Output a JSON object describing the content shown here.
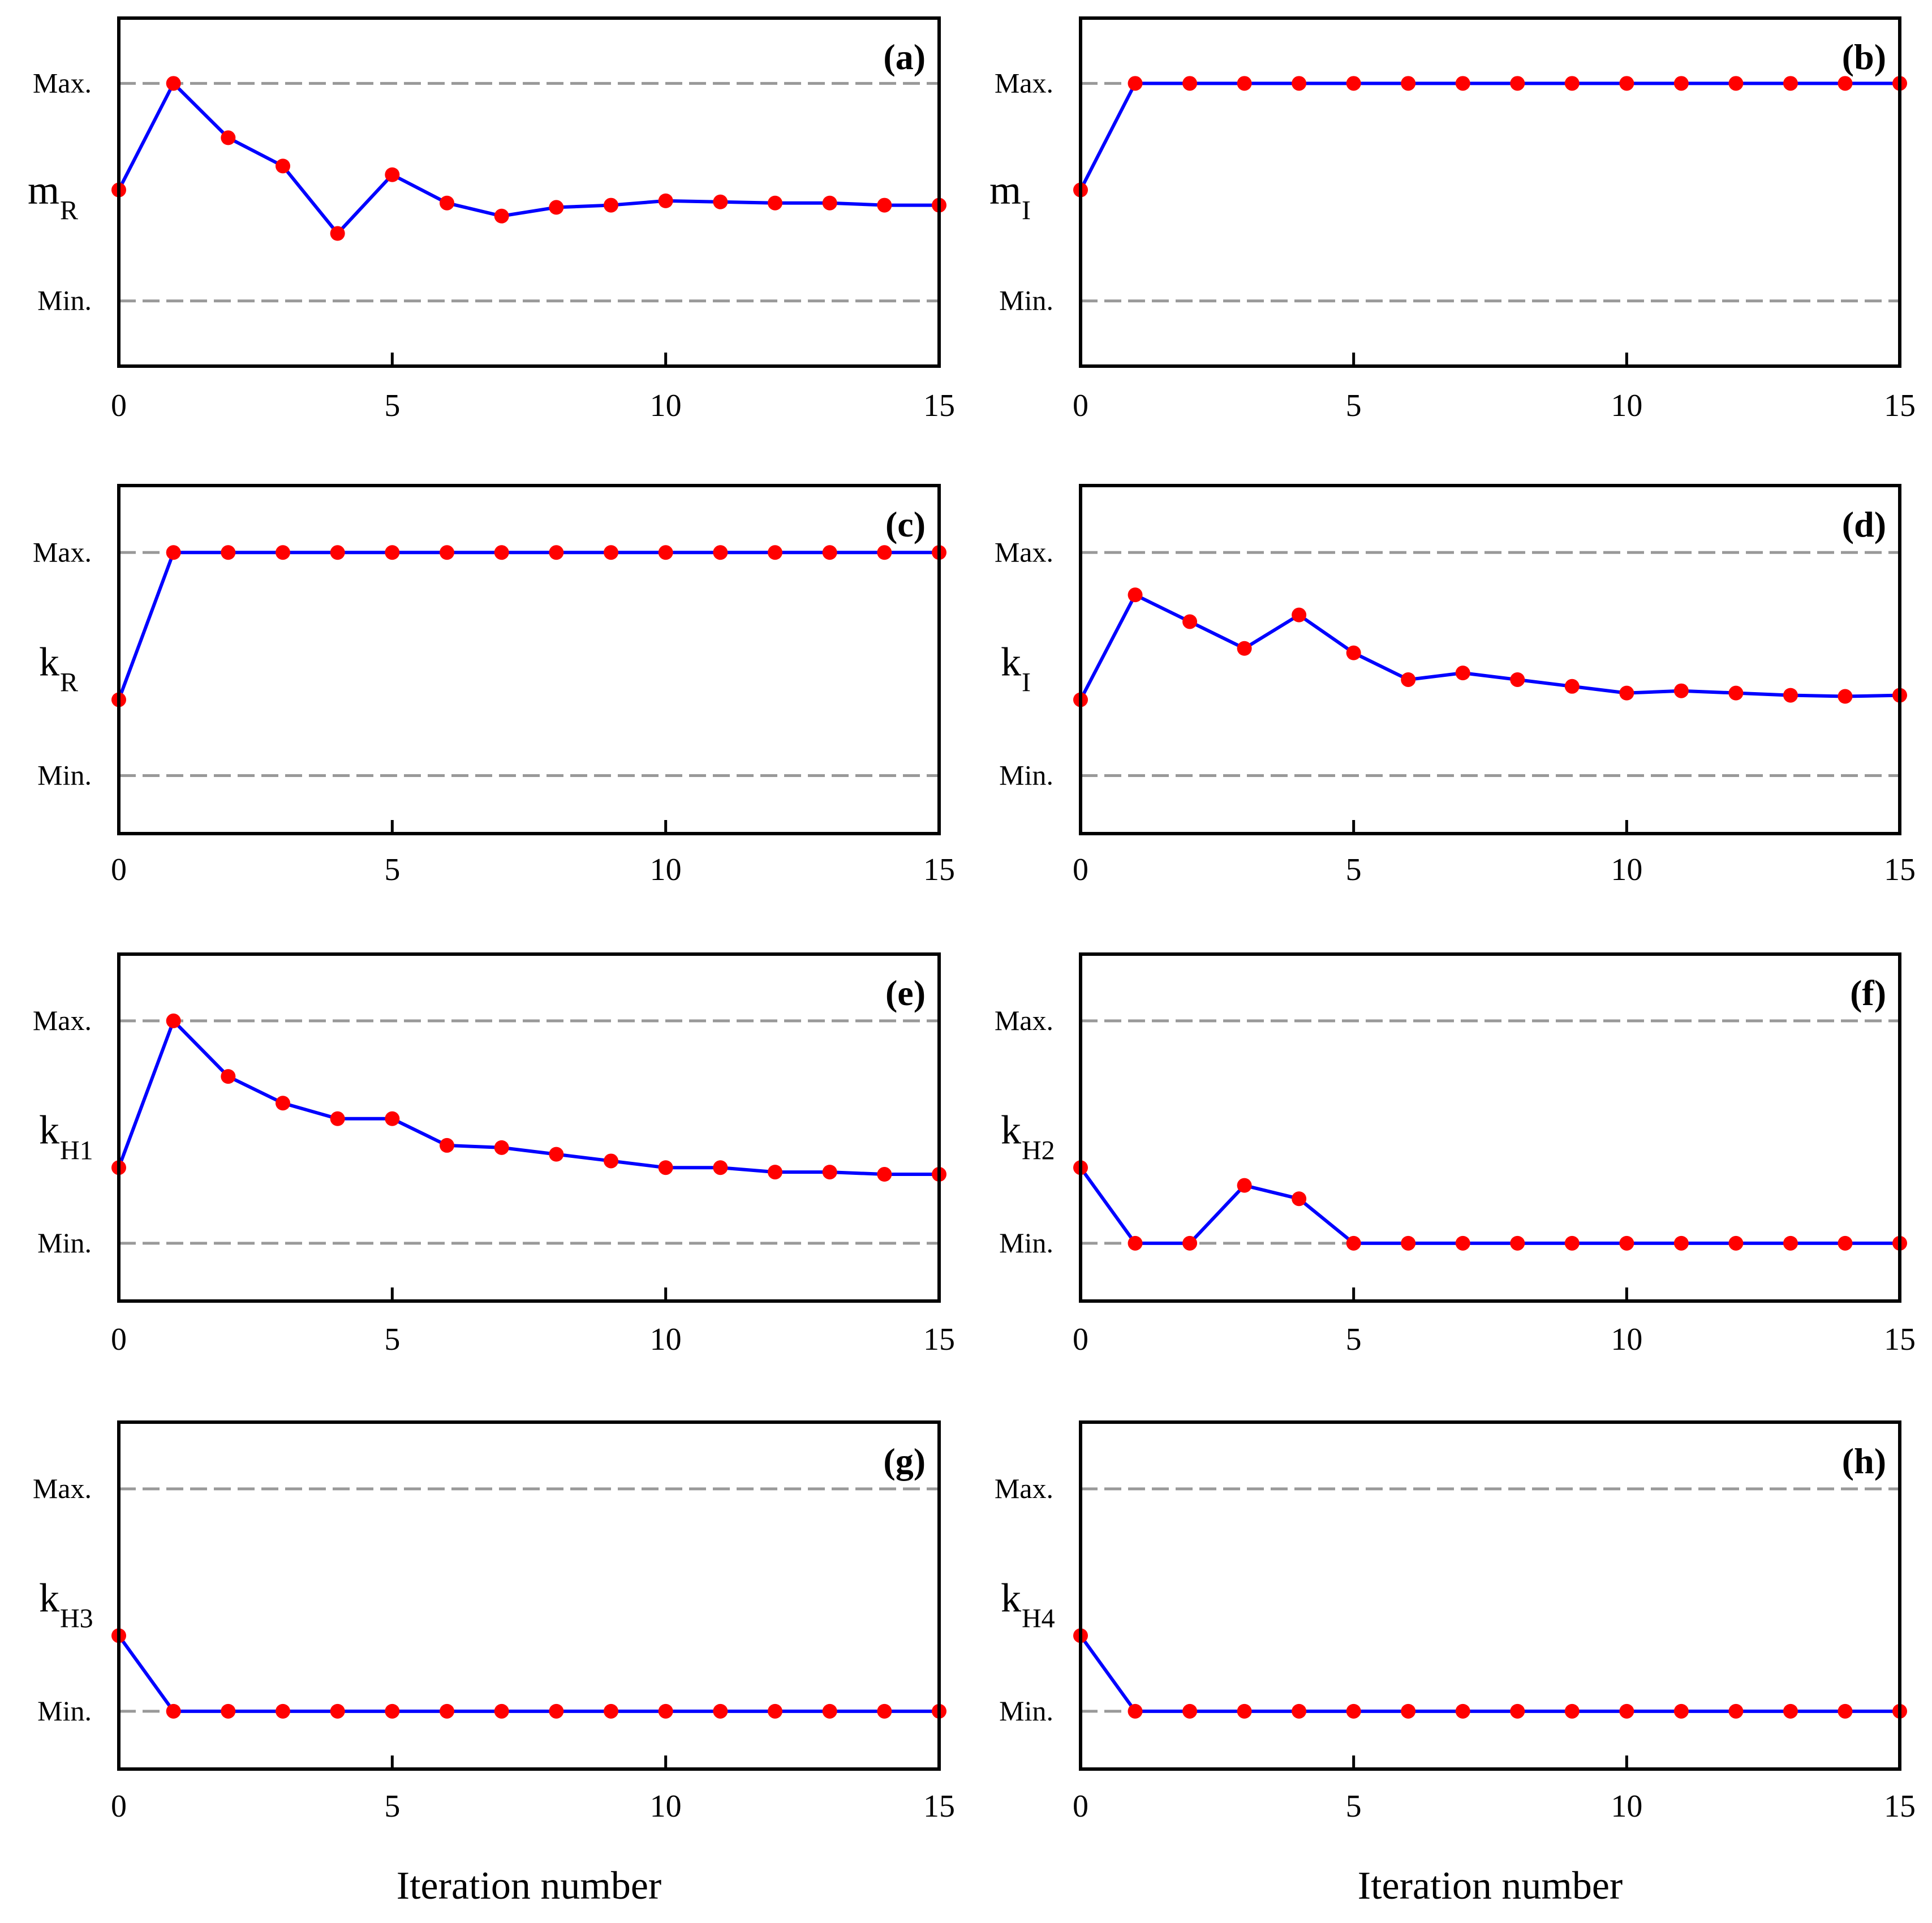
{
  "chart_data": [
    {
      "panel": "a",
      "type": "line",
      "label": "(a)",
      "ylabel": "m",
      "ysub": "R",
      "ymax_label": "Max.",
      "ymin_label": "Min.",
      "xlabel": "",
      "x": [
        0,
        1,
        2,
        3,
        4,
        5,
        6,
        7,
        8,
        9,
        10,
        11,
        12,
        13,
        14,
        15
      ],
      "values": [
        0.51,
        1.0,
        0.75,
        0.62,
        0.31,
        0.58,
        0.45,
        0.39,
        0.43,
        0.44,
        0.46,
        0.455,
        0.45,
        0.45,
        0.44,
        0.44
      ],
      "xlim": [
        0,
        15
      ],
      "ylim": [
        -0.3,
        1.3
      ],
      "xticks": [
        0,
        5,
        10,
        15
      ],
      "grid": "dashed lines at Max. and Min."
    },
    {
      "panel": "b",
      "type": "line",
      "label": "(b)",
      "ylabel": "m",
      "ysub": "I",
      "ymax_label": "Max.",
      "ymin_label": "Min.",
      "xlabel": "",
      "x": [
        0,
        1,
        2,
        3,
        4,
        5,
        6,
        7,
        8,
        9,
        10,
        11,
        12,
        13,
        14,
        15
      ],
      "values": [
        0.51,
        1,
        1,
        1,
        1,
        1,
        1,
        1,
        1,
        1,
        1,
        1,
        1,
        1,
        1,
        1
      ],
      "xlim": [
        0,
        15
      ],
      "ylim": [
        -0.3,
        1.3
      ],
      "xticks": [
        0,
        5,
        10,
        15
      ],
      "grid": "dashed lines at Max. and Min."
    },
    {
      "panel": "c",
      "type": "line",
      "label": "(c)",
      "ylabel": "k",
      "ysub": "R",
      "ymax_label": "Max.",
      "ymin_label": "Min.",
      "xlabel": "",
      "x": [
        0,
        1,
        2,
        3,
        4,
        5,
        6,
        7,
        8,
        9,
        10,
        11,
        12,
        13,
        14,
        15
      ],
      "values": [
        0.34,
        1,
        1,
        1,
        1,
        1,
        1,
        1,
        1,
        1,
        1,
        1,
        1,
        1,
        1,
        1
      ],
      "xlim": [
        0,
        15
      ],
      "ylim": [
        -0.26,
        1.3
      ],
      "xticks": [
        0,
        5,
        10,
        15
      ],
      "grid": "dashed lines at Max. and Min."
    },
    {
      "panel": "d",
      "type": "line",
      "label": "(d)",
      "ylabel": "k",
      "ysub": "I",
      "ymax_label": "Max.",
      "ymin_label": "Min.",
      "xlabel": "",
      "x": [
        0,
        1,
        2,
        3,
        4,
        5,
        6,
        7,
        8,
        9,
        10,
        11,
        12,
        13,
        14,
        15
      ],
      "values": [
        0.34,
        0.81,
        0.69,
        0.57,
        0.72,
        0.55,
        0.43,
        0.46,
        0.43,
        0.4,
        0.37,
        0.38,
        0.37,
        0.36,
        0.355,
        0.36
      ],
      "xlim": [
        0,
        15
      ],
      "ylim": [
        -0.26,
        1.3
      ],
      "xticks": [
        0,
        5,
        10,
        15
      ],
      "grid": "dashed lines at Max. and Min."
    },
    {
      "panel": "e",
      "type": "line",
      "label": "(e)",
      "ylabel": "k",
      "ysub": "H1",
      "ymax_label": "Max.",
      "ymin_label": "Min.",
      "xlabel": "",
      "x": [
        0,
        1,
        2,
        3,
        4,
        5,
        6,
        7,
        8,
        9,
        10,
        11,
        12,
        13,
        14,
        15
      ],
      "values": [
        0.34,
        1.0,
        0.75,
        0.63,
        0.56,
        0.56,
        0.44,
        0.43,
        0.4,
        0.37,
        0.34,
        0.34,
        0.32,
        0.32,
        0.31,
        0.31
      ],
      "xlim": [
        0,
        15
      ],
      "ylim": [
        -0.26,
        1.3
      ],
      "xticks": [
        0,
        5,
        10,
        15
      ],
      "grid": "dashed lines at Max. and Min."
    },
    {
      "panel": "f",
      "type": "line",
      "label": "(f)",
      "ylabel": "k",
      "ysub": "H2",
      "ymax_label": "Max.",
      "ymin_label": "Min.",
      "xlabel": "",
      "x": [
        0,
        1,
        2,
        3,
        4,
        5,
        6,
        7,
        8,
        9,
        10,
        11,
        12,
        13,
        14,
        15
      ],
      "values": [
        0.34,
        0,
        0,
        0.26,
        0.2,
        0,
        0,
        0,
        0,
        0,
        0,
        0,
        0,
        0,
        0,
        0
      ],
      "xlim": [
        0,
        15
      ],
      "ylim": [
        -0.26,
        1.3
      ],
      "xticks": [
        0,
        5,
        10,
        15
      ],
      "grid": "dashed lines at Max. and Min."
    },
    {
      "panel": "g",
      "type": "line",
      "label": "(g)",
      "ylabel": "k",
      "ysub": "H3",
      "ymax_label": "Max.",
      "ymin_label": "Min.",
      "xlabel": "Iteration number",
      "x": [
        0,
        1,
        2,
        3,
        4,
        5,
        6,
        7,
        8,
        9,
        10,
        11,
        12,
        13,
        14,
        15
      ],
      "values": [
        0.34,
        0,
        0,
        0,
        0,
        0,
        0,
        0,
        0,
        0,
        0,
        0,
        0,
        0,
        0,
        0
      ],
      "xlim": [
        0,
        15
      ],
      "ylim": [
        -0.26,
        1.3
      ],
      "xticks": [
        0,
        5,
        10,
        15
      ],
      "grid": "dashed lines at Max. and Min."
    },
    {
      "panel": "h",
      "type": "line",
      "label": "(h)",
      "ylabel": "k",
      "ysub": "H4",
      "ymax_label": "Max.",
      "ymin_label": "Min.",
      "xlabel": "Iteration number",
      "x": [
        0,
        1,
        2,
        3,
        4,
        5,
        6,
        7,
        8,
        9,
        10,
        11,
        12,
        13,
        14,
        15
      ],
      "values": [
        0.34,
        0,
        0,
        0,
        0,
        0,
        0,
        0,
        0,
        0,
        0,
        0,
        0,
        0,
        0,
        0
      ],
      "xlim": [
        0,
        15
      ],
      "ylim": [
        -0.26,
        1.3
      ],
      "xticks": [
        0,
        5,
        10,
        15
      ],
      "grid": "dashed lines at Max. and Min."
    }
  ],
  "colors": {
    "line": "#0000ff",
    "marker": "#ff0000",
    "dash": "#999999",
    "frame": "#000000"
  }
}
